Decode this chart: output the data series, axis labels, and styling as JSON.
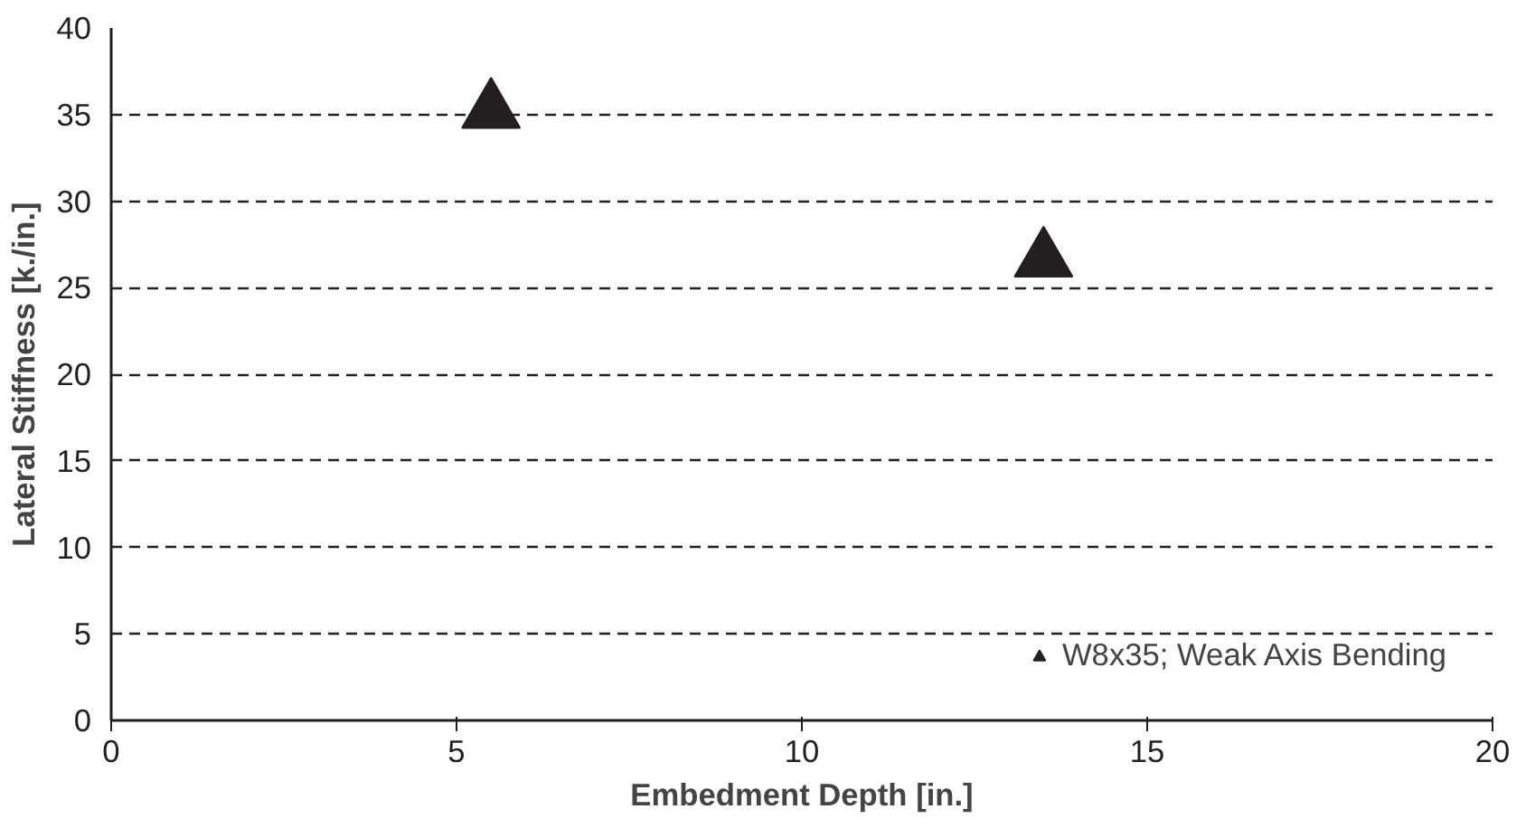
{
  "chart_data": {
    "type": "scatter",
    "xlabel": "Embedment Depth [in.]",
    "ylabel": "Lateral Stiffness [k./in.]",
    "x": [
      5.5,
      13.5
    ],
    "series": [
      {
        "name": "W8x35; Weak Axis Bending",
        "color": "#231f20",
        "values": [
          35.2,
          26.6
        ]
      }
    ],
    "marker": "triangle",
    "xlim": [
      0,
      20
    ],
    "ylim": [
      0,
      40
    ],
    "xticks": [
      0,
      5,
      10,
      15,
      20
    ],
    "yticks": [
      0,
      5,
      10,
      15,
      20,
      25,
      30,
      35,
      40
    ],
    "grid": "y",
    "legend": "bottom right"
  }
}
